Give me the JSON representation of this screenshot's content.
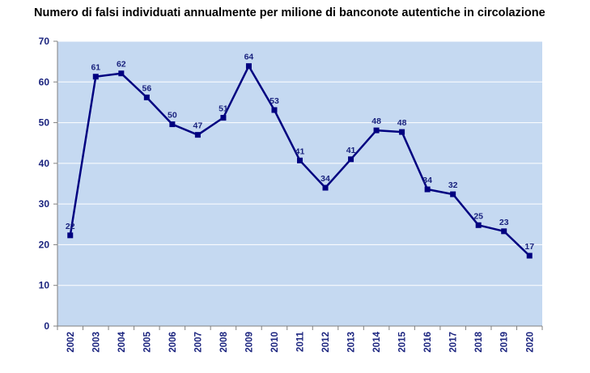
{
  "chart_data": {
    "type": "line",
    "title": "Numero di falsi individuati annualmente per milione di banconote autentiche in circolazione",
    "xlabel": "",
    "ylabel": "",
    "ylim": [
      0,
      70
    ],
    "yticks": [
      0,
      10,
      20,
      30,
      40,
      50,
      60,
      70
    ],
    "grid": true,
    "legend": "none",
    "x": [
      "2002",
      "2003",
      "2004",
      "2005",
      "2006",
      "2007",
      "2008",
      "2009",
      "2010",
      "2011",
      "2012",
      "2013",
      "2014",
      "2015",
      "2016",
      "2017",
      "2018",
      "2019",
      "2020"
    ],
    "series": [
      {
        "values": [
          22.3,
          61.3,
          62.1,
          56.2,
          49.6,
          47.0,
          51.2,
          63.9,
          53.1,
          40.7,
          34.0,
          41.0,
          48.1,
          47.7,
          33.6,
          32.4,
          24.8,
          23.3,
          17.3
        ],
        "labels": [
          "22",
          "61",
          "62",
          "56",
          "50",
          "47",
          "51",
          "64",
          "53",
          "41",
          "34",
          "41",
          "48",
          "48",
          "34",
          "32",
          "25",
          "23",
          "17"
        ],
        "color": "#000080"
      }
    ],
    "colors": {
      "plot_bg": "#c5d9f1",
      "grid": "#ffffff",
      "axis": "#808080",
      "text": "#1a237e"
    }
  }
}
